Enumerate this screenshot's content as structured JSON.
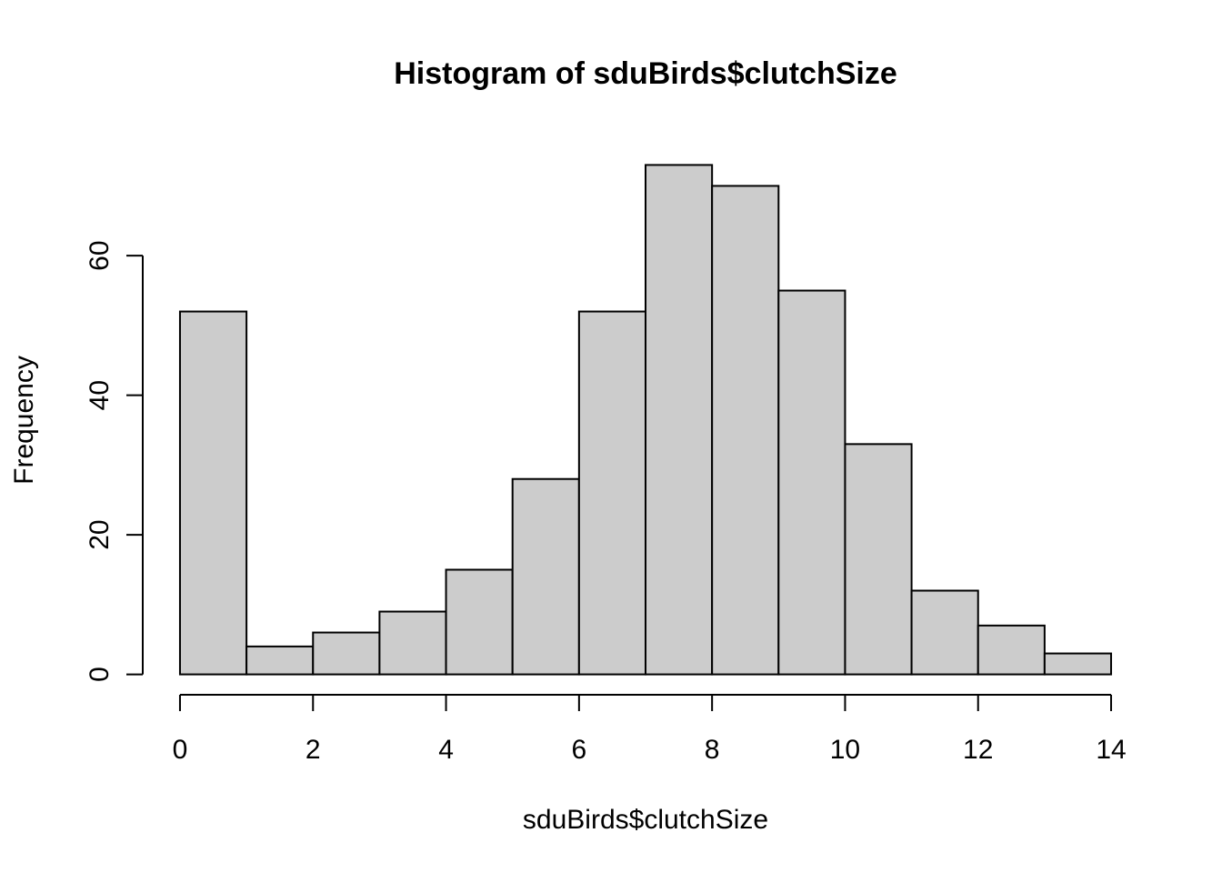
{
  "chart_data": {
    "type": "histogram",
    "title": "Histogram of sduBirds$clutchSize",
    "x_label": "sduBirds$clutchSize",
    "y_label": "Frequency",
    "bins": [
      0,
      1,
      2,
      3,
      4,
      5,
      6,
      7,
      8,
      9,
      10,
      11,
      12,
      13,
      14
    ],
    "counts": [
      52,
      4,
      6,
      9,
      15,
      28,
      52,
      73,
      70,
      55,
      33,
      12,
      7,
      3
    ],
    "color": "#cccccc",
    "edge_color": "#000000",
    "xlim": [
      -0.56,
      14.56
    ],
    "ylim": [
      -2.92,
      75.92
    ],
    "xticks": [
      0,
      2,
      4,
      6,
      8,
      10,
      12,
      14
    ],
    "yticks": [
      0,
      20,
      40,
      60
    ],
    "grid": false
  }
}
